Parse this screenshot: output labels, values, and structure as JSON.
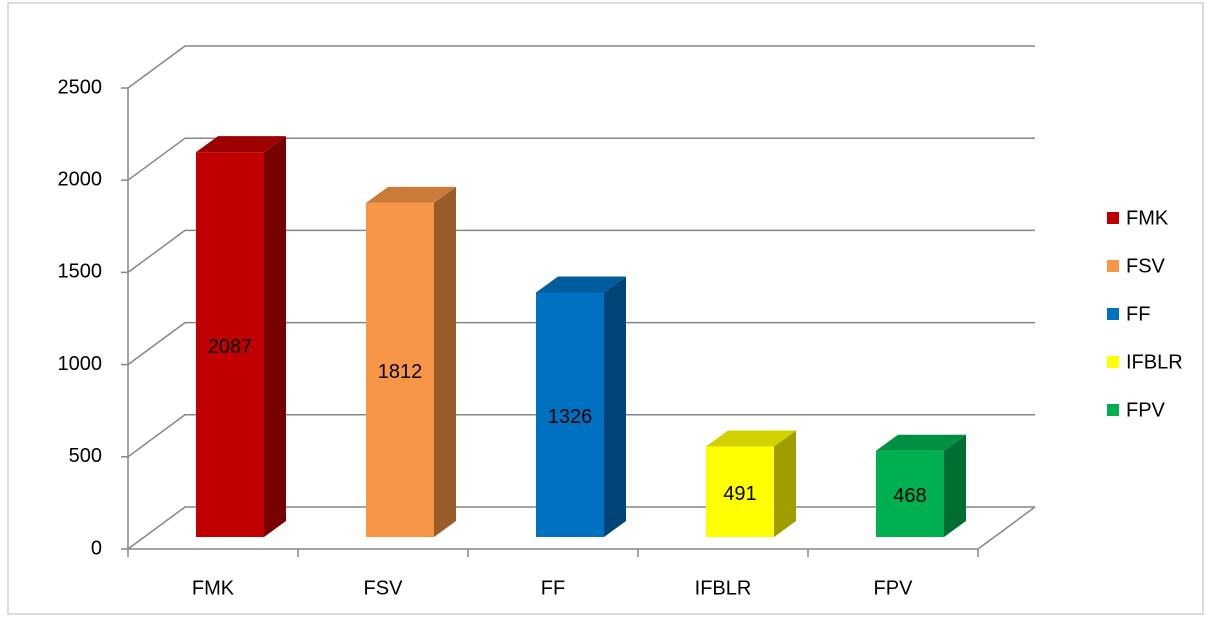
{
  "chart_data": {
    "type": "bar3d",
    "categories": [
      "FMK",
      "FSV",
      "FF",
      "IFBLR",
      "FPV"
    ],
    "values": [
      2087,
      1812,
      1326,
      491,
      468
    ],
    "colors": [
      "#c00000",
      "#f79646",
      "#0070c0",
      "#ffff00",
      "#00b050"
    ],
    "ylim": [
      0,
      2500
    ],
    "yticks": [
      0,
      500,
      1000,
      1500,
      2000,
      2500
    ],
    "grid": true,
    "legend": "right"
  }
}
